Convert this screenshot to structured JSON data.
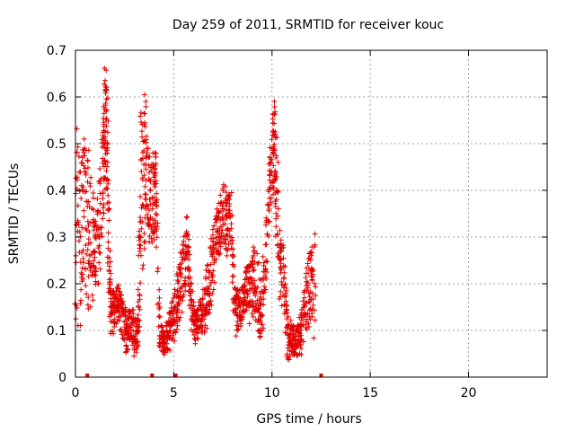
{
  "chart_data": {
    "type": "scatter",
    "title": "Day 259 of 2011, SRMTID for receiver kouc",
    "xlabel": "GPS time / hours",
    "ylabel": "SRMTID / TECUs",
    "xlim": [
      0,
      24
    ],
    "ylim": [
      0,
      0.7
    ],
    "x_ticks": [
      0,
      5,
      10,
      15,
      20
    ],
    "x_tick_labels": [
      "0",
      "5",
      "10",
      "15",
      "20"
    ],
    "y_ticks": [
      0,
      0.1,
      0.2,
      0.3,
      0.4,
      0.5,
      0.6,
      0.7
    ],
    "y_tick_labels": [
      "0",
      "0.1",
      "0.2",
      "0.3",
      "0.4",
      "0.5",
      "0.6",
      "0.7"
    ],
    "grid": true,
    "marker": "+",
    "color": "#e00000",
    "series": [
      {
        "name": "SRMTID",
        "envelope": [
          [
            0.0,
            0.08,
            0.58
          ],
          [
            0.2,
            0.1,
            0.45
          ],
          [
            0.4,
            0.2,
            0.52
          ],
          [
            0.6,
            0.15,
            0.5
          ],
          [
            0.8,
            0.12,
            0.46
          ],
          [
            1.0,
            0.18,
            0.33
          ],
          [
            1.2,
            0.2,
            0.4
          ],
          [
            1.4,
            0.3,
            0.55
          ],
          [
            1.5,
            0.4,
            0.67
          ],
          [
            1.6,
            0.45,
            0.66
          ],
          [
            1.7,
            0.15,
            0.35
          ],
          [
            1.8,
            0.08,
            0.2
          ],
          [
            2.0,
            0.1,
            0.18
          ],
          [
            2.2,
            0.12,
            0.2
          ],
          [
            2.4,
            0.08,
            0.17
          ],
          [
            2.6,
            0.05,
            0.15
          ],
          [
            2.8,
            0.08,
            0.14
          ],
          [
            3.0,
            0.04,
            0.15
          ],
          [
            3.2,
            0.06,
            0.12
          ],
          [
            3.3,
            0.1,
            0.59
          ],
          [
            3.5,
            0.2,
            0.62
          ],
          [
            3.6,
            0.35,
            0.6
          ],
          [
            3.8,
            0.25,
            0.45
          ],
          [
            4.0,
            0.3,
            0.51
          ],
          [
            4.1,
            0.28,
            0.47
          ],
          [
            4.3,
            0.05,
            0.12
          ],
          [
            4.5,
            0.04,
            0.1
          ],
          [
            4.7,
            0.05,
            0.13
          ],
          [
            4.9,
            0.06,
            0.16
          ],
          [
            5.1,
            0.08,
            0.2
          ],
          [
            5.3,
            0.12,
            0.25
          ],
          [
            5.5,
            0.15,
            0.3
          ],
          [
            5.7,
            0.2,
            0.37
          ],
          [
            5.9,
            0.1,
            0.2
          ],
          [
            6.1,
            0.07,
            0.15
          ],
          [
            6.3,
            0.08,
            0.16
          ],
          [
            6.5,
            0.1,
            0.18
          ],
          [
            6.7,
            0.09,
            0.25
          ],
          [
            6.9,
            0.15,
            0.3
          ],
          [
            7.1,
            0.2,
            0.35
          ],
          [
            7.3,
            0.25,
            0.38
          ],
          [
            7.5,
            0.3,
            0.42
          ],
          [
            7.7,
            0.25,
            0.4
          ],
          [
            7.9,
            0.3,
            0.4
          ],
          [
            8.1,
            0.08,
            0.2
          ],
          [
            8.3,
            0.1,
            0.18
          ],
          [
            8.5,
            0.12,
            0.2
          ],
          [
            8.7,
            0.15,
            0.24
          ],
          [
            8.9,
            0.1,
            0.25
          ],
          [
            9.1,
            0.15,
            0.3
          ],
          [
            9.3,
            0.05,
            0.25
          ],
          [
            9.5,
            0.08,
            0.2
          ],
          [
            9.7,
            0.2,
            0.35
          ],
          [
            9.9,
            0.35,
            0.5
          ],
          [
            10.1,
            0.4,
            0.6
          ],
          [
            10.2,
            0.3,
            0.58
          ],
          [
            10.4,
            0.15,
            0.3
          ],
          [
            10.6,
            0.15,
            0.28
          ],
          [
            10.8,
            0.03,
            0.13
          ],
          [
            11.0,
            0.04,
            0.12
          ],
          [
            11.2,
            0.05,
            0.1
          ],
          [
            11.4,
            0.04,
            0.12
          ],
          [
            11.6,
            0.06,
            0.18
          ],
          [
            11.8,
            0.1,
            0.25
          ],
          [
            12.0,
            0.12,
            0.29
          ],
          [
            12.2,
            0.05,
            0.34
          ]
        ],
        "gap_markers": [
          0.6,
          3.9,
          5.1,
          12.5
        ]
      }
    ]
  }
}
